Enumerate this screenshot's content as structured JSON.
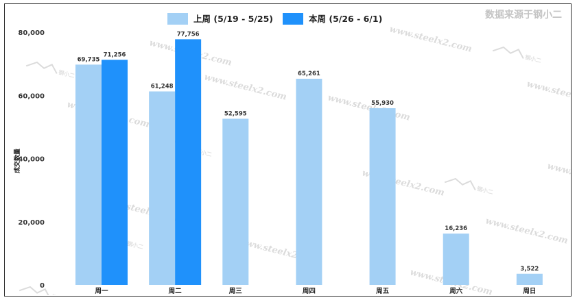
{
  "brand_watermark": "数据来源于钢小二",
  "watermark": {
    "site": "www.steelx2.com",
    "logo": "钢小二"
  },
  "chart_data": {
    "type": "bar",
    "title": "",
    "xlabel": "",
    "ylabel": "成交数量",
    "ylim": [
      0,
      80000
    ],
    "yticks": [
      0,
      20000,
      40000,
      60000,
      80000
    ],
    "ytick_labels": [
      "0",
      "20,000",
      "40,000",
      "60,000",
      "80,000"
    ],
    "categories": [
      "周一",
      "周二",
      "周三",
      "周四",
      "周五",
      "周六",
      "周日"
    ],
    "legend_position": "top",
    "grid": false,
    "series": [
      {
        "name": "上周 (5/19 - 5/25)",
        "color": "#a3d0f5",
        "values": [
          69735,
          61248,
          52595,
          65261,
          55930,
          16236,
          3522
        ],
        "labels": [
          "69,735",
          "61,248",
          "52,595",
          "65,261",
          "55,930",
          "16,236",
          "3,522"
        ]
      },
      {
        "name": "本周 (5/26 - 6/1)",
        "color": "#1f91fb",
        "values": [
          71256,
          77756,
          null,
          null,
          null,
          null,
          null
        ],
        "labels": [
          "71,256",
          "77,756",
          "",
          "",
          "",
          "",
          ""
        ]
      }
    ]
  }
}
